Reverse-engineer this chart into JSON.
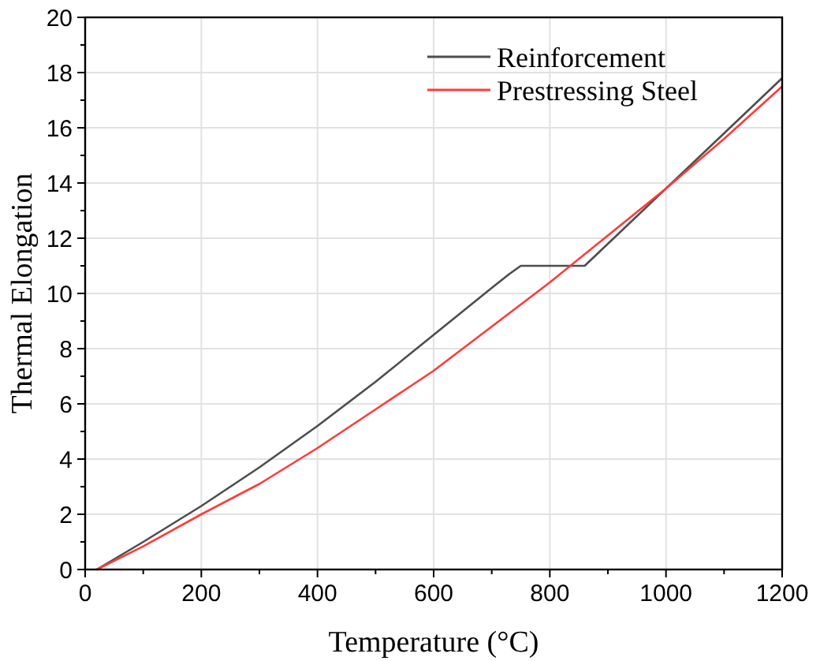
{
  "chart_data": {
    "type": "line",
    "xlabel": "Temperature (°C)",
    "ylabel": "Thermal Elongation",
    "xlim": [
      0,
      1200
    ],
    "ylim": [
      0,
      20
    ],
    "xticks": [
      0,
      200,
      400,
      600,
      800,
      1000,
      1200
    ],
    "yticks": [
      0,
      2,
      4,
      6,
      8,
      10,
      12,
      14,
      16,
      18,
      20
    ],
    "grid": true,
    "legend": "top right",
    "line_style": "solid",
    "marker": "none",
    "series": [
      {
        "name": "Reinforcement",
        "color": "#4d4d4d",
        "x": [
          20,
          100,
          200,
          300,
          400,
          500,
          600,
          700,
          730,
          750,
          860,
          900,
          1000,
          1100,
          1200
        ],
        "values": [
          0,
          1.0,
          2.3,
          3.7,
          5.2,
          6.8,
          8.5,
          10.2,
          10.7,
          11.0,
          11.0,
          11.8,
          13.8,
          15.8,
          17.8
        ]
      },
      {
        "name": "Prestressing Steel",
        "color": "#ff3b3b",
        "x": [
          20,
          100,
          200,
          300,
          400,
          500,
          600,
          700,
          800,
          900,
          1000,
          1100,
          1200
        ],
        "values": [
          0,
          0.84,
          2.0,
          3.1,
          4.4,
          5.8,
          7.2,
          8.8,
          10.4,
          12.1,
          13.8,
          15.6,
          17.5
        ]
      }
    ]
  }
}
